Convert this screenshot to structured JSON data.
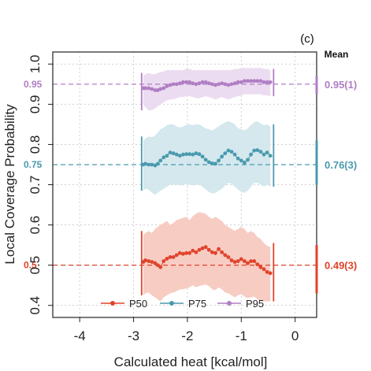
{
  "chart_data": {
    "type": "line",
    "panel_label": "(c)",
    "xlabel": "Calculated heat [kcal/mol]",
    "ylabel": "Local Coverage Probability",
    "xlim": [
      -4.5,
      0.4
    ],
    "ylim": [
      0.37,
      1.03
    ],
    "x_ticks": [
      -4,
      -3,
      -2,
      -1,
      0
    ],
    "x_tick_labels": [
      "-4",
      "-3",
      "-2",
      "-1",
      "0"
    ],
    "y_ticks": [
      0.4,
      0.5,
      0.6,
      0.7,
      0.8,
      0.9,
      1.0
    ],
    "y_tick_labels": [
      "0.4",
      "0.5",
      "0.6",
      "0.7",
      "0.8",
      "0.9",
      "1.0"
    ],
    "grid": true,
    "legend_position": "bottom",
    "mean_header": "Mean",
    "range_start": -2.85,
    "range_end": -0.4,
    "series": [
      {
        "name": "P50",
        "color": "#e0432b",
        "band_color": "#f6c7bd",
        "target": 0.5,
        "target_label": "0.5",
        "mean_label": "0.49(3)",
        "mean_range": [
          0.43,
          0.55
        ],
        "x": [
          -2.82,
          -2.78,
          -2.72,
          -2.66,
          -2.6,
          -2.55,
          -2.5,
          -2.44,
          -2.38,
          -2.32,
          -2.26,
          -2.2,
          -2.14,
          -2.08,
          -2.02,
          -1.96,
          -1.9,
          -1.84,
          -1.78,
          -1.72,
          -1.66,
          -1.6,
          -1.54,
          -1.48,
          -1.42,
          -1.36,
          -1.3,
          -1.24,
          -1.18,
          -1.12,
          -1.06,
          -1.0,
          -0.94,
          -0.88,
          -0.82,
          -0.76,
          -0.7,
          -0.64,
          -0.58,
          -0.52,
          -0.46
        ],
        "y": [
          0.508,
          0.512,
          0.51,
          0.508,
          0.505,
          0.5,
          0.495,
          0.51,
          0.516,
          0.52,
          0.52,
          0.525,
          0.53,
          0.528,
          0.53,
          0.53,
          0.536,
          0.532,
          0.538,
          0.542,
          0.545,
          0.538,
          0.532,
          0.53,
          0.54,
          0.532,
          0.525,
          0.52,
          0.512,
          0.508,
          0.51,
          0.515,
          0.51,
          0.505,
          0.51,
          0.51,
          0.502,
          0.495,
          0.49,
          0.483,
          0.48
        ],
        "band_upper": [
          0.575,
          0.58,
          0.585,
          0.58,
          0.59,
          0.595,
          0.6,
          0.605,
          0.61,
          0.6,
          0.605,
          0.612,
          0.615,
          0.618,
          0.62,
          0.612,
          0.622,
          0.628,
          0.632,
          0.63,
          0.628,
          0.62,
          0.615,
          0.62,
          0.615,
          0.61,
          0.6,
          0.595,
          0.59,
          0.585,
          0.59,
          0.595,
          0.59,
          0.58,
          0.585,
          0.58,
          0.57,
          0.565,
          0.555,
          0.548,
          0.545
        ],
        "band_lower": [
          0.425,
          0.43,
          0.432,
          0.425,
          0.42,
          0.415,
          0.41,
          0.42,
          0.425,
          0.43,
          0.432,
          0.435,
          0.44,
          0.44,
          0.442,
          0.445,
          0.45,
          0.445,
          0.448,
          0.45,
          0.452,
          0.448,
          0.44,
          0.438,
          0.445,
          0.44,
          0.432,
          0.43,
          0.425,
          0.42,
          0.425,
          0.428,
          0.422,
          0.418,
          0.42,
          0.422,
          0.415,
          0.41,
          0.41,
          0.41,
          0.41
        ]
      },
      {
        "name": "P75",
        "color": "#4a9aae",
        "band_color": "#cfe6ec",
        "target": 0.75,
        "target_label": "0.75",
        "mean_label": "0.76(3)",
        "mean_range": [
          0.7,
          0.81
        ],
        "x": [
          -2.82,
          -2.78,
          -2.72,
          -2.66,
          -2.6,
          -2.55,
          -2.5,
          -2.44,
          -2.38,
          -2.32,
          -2.26,
          -2.2,
          -2.14,
          -2.08,
          -2.02,
          -1.96,
          -1.9,
          -1.84,
          -1.78,
          -1.72,
          -1.66,
          -1.6,
          -1.54,
          -1.48,
          -1.42,
          -1.36,
          -1.3,
          -1.24,
          -1.18,
          -1.12,
          -1.06,
          -1.0,
          -0.94,
          -0.88,
          -0.82,
          -0.76,
          -0.7,
          -0.64,
          -0.58,
          -0.52,
          -0.46
        ],
        "y": [
          0.75,
          0.752,
          0.75,
          0.75,
          0.748,
          0.752,
          0.76,
          0.768,
          0.772,
          0.78,
          0.778,
          0.775,
          0.772,
          0.775,
          0.776,
          0.776,
          0.775,
          0.778,
          0.776,
          0.77,
          0.762,
          0.756,
          0.753,
          0.752,
          0.76,
          0.77,
          0.778,
          0.785,
          0.782,
          0.775,
          0.765,
          0.76,
          0.755,
          0.762,
          0.775,
          0.785,
          0.786,
          0.782,
          0.775,
          0.78,
          0.772
        ],
        "band_upper": [
          0.81,
          0.815,
          0.82,
          0.818,
          0.822,
          0.83,
          0.838,
          0.842,
          0.848,
          0.85,
          0.85,
          0.845,
          0.842,
          0.845,
          0.848,
          0.85,
          0.848,
          0.85,
          0.85,
          0.845,
          0.84,
          0.838,
          0.835,
          0.84,
          0.845,
          0.85,
          0.855,
          0.858,
          0.855,
          0.85,
          0.84,
          0.838,
          0.835,
          0.84,
          0.848,
          0.855,
          0.858,
          0.852,
          0.848,
          0.85,
          0.845
        ],
        "band_lower": [
          0.685,
          0.69,
          0.688,
          0.68,
          0.675,
          0.68,
          0.685,
          0.69,
          0.695,
          0.7,
          0.7,
          0.7,
          0.698,
          0.7,
          0.702,
          0.7,
          0.698,
          0.7,
          0.7,
          0.695,
          0.688,
          0.682,
          0.678,
          0.68,
          0.685,
          0.69,
          0.698,
          0.705,
          0.702,
          0.695,
          0.688,
          0.682,
          0.68,
          0.685,
          0.695,
          0.705,
          0.705,
          0.7,
          0.695,
          0.7,
          0.695
        ]
      },
      {
        "name": "P95",
        "color": "#b07ec4",
        "band_color": "#ead8f0",
        "target": 0.95,
        "target_label": "0.95",
        "mean_label": "0.95(1)",
        "mean_range": [
          0.925,
          0.97
        ],
        "x": [
          -2.82,
          -2.78,
          -2.72,
          -2.66,
          -2.6,
          -2.55,
          -2.5,
          -2.44,
          -2.38,
          -2.32,
          -2.26,
          -2.2,
          -2.14,
          -2.08,
          -2.02,
          -1.96,
          -1.9,
          -1.84,
          -1.78,
          -1.72,
          -1.66,
          -1.6,
          -1.54,
          -1.48,
          -1.42,
          -1.36,
          -1.3,
          -1.24,
          -1.18,
          -1.12,
          -1.06,
          -1.0,
          -0.94,
          -0.88,
          -0.82,
          -0.76,
          -0.7,
          -0.64,
          -0.58,
          -0.52,
          -0.46
        ],
        "y": [
          0.94,
          0.94,
          0.94,
          0.938,
          0.935,
          0.935,
          0.938,
          0.94,
          0.945,
          0.948,
          0.95,
          0.95,
          0.952,
          0.955,
          0.955,
          0.955,
          0.952,
          0.95,
          0.952,
          0.955,
          0.955,
          0.952,
          0.95,
          0.948,
          0.95,
          0.952,
          0.95,
          0.948,
          0.95,
          0.952,
          0.955,
          0.955,
          0.958,
          0.958,
          0.958,
          0.958,
          0.958,
          0.958,
          0.955,
          0.955,
          0.955
        ],
        "band_upper": [
          0.972,
          0.975,
          0.978,
          0.975,
          0.975,
          0.978,
          0.98,
          0.982,
          0.985,
          0.985,
          0.985,
          0.985,
          0.985,
          0.985,
          0.988,
          0.988,
          0.985,
          0.985,
          0.985,
          0.985,
          0.985,
          0.985,
          0.985,
          0.985,
          0.985,
          0.985,
          0.985,
          0.985,
          0.985,
          0.988,
          0.988,
          0.99,
          0.99,
          0.99,
          0.99,
          0.99,
          0.99,
          0.99,
          0.988,
          0.988,
          0.985
        ],
        "band_lower": [
          0.9,
          0.892,
          0.885,
          0.885,
          0.89,
          0.895,
          0.9,
          0.905,
          0.91,
          0.912,
          0.912,
          0.915,
          0.918,
          0.918,
          0.92,
          0.92,
          0.918,
          0.915,
          0.915,
          0.918,
          0.92,
          0.918,
          0.915,
          0.912,
          0.915,
          0.918,
          0.915,
          0.912,
          0.915,
          0.918,
          0.92,
          0.922,
          0.925,
          0.925,
          0.925,
          0.925,
          0.925,
          0.925,
          0.922,
          0.922,
          0.92
        ]
      }
    ]
  }
}
